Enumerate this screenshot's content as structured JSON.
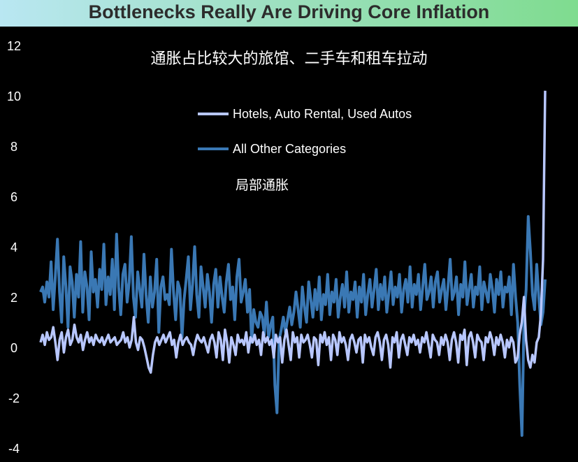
{
  "title": "Bottlenecks Really Are Driving Core Inflation",
  "subtitle": "通胀占比较大的旅馆、二手车和租车拉动",
  "annotation": "局部通胀",
  "colors": {
    "background": "#000000",
    "hotels_series": "#b8c7ff",
    "other_series": "#3a78b4",
    "title_text": "#2c2c2c",
    "axis_text": "#ffffff"
  },
  "chart_data": {
    "type": "line",
    "title": "Bottlenecks Really Are Driving Core Inflation",
    "xlabel": "",
    "ylabel": "",
    "ylim": [
      -4,
      12
    ],
    "yticks": [
      12,
      10,
      8,
      6,
      4,
      2,
      0,
      -2,
      -4
    ],
    "grid": false,
    "legend_position": "top-center",
    "series": [
      {
        "name": "Hotels, Auto Rental, Used Autos",
        "color": "#b8c7ff",
        "values": [
          0.2,
          0.5,
          0.1,
          0.6,
          0.3,
          0.4,
          0.8,
          0.2,
          -0.5,
          0.3,
          0.6,
          -0.2,
          0.4,
          0.7,
          0.1,
          0.3,
          0.9,
          0.4,
          0.2,
          0.5,
          -0.1,
          0.3,
          0.6,
          0.2,
          0.4,
          0.1,
          0.5,
          0.3,
          0.2,
          0.4,
          0.1,
          0.3,
          0.5,
          0.2,
          0.3,
          0.4,
          0.1,
          0.2,
          0.3,
          0.6,
          0.2,
          0.4,
          0.0,
          0.3,
          1.2,
          0.2,
          -0.1,
          0.4,
          0.3,
          0.0,
          -0.4,
          -0.8,
          -1.0,
          -0.3,
          0.2,
          0.4,
          0.1,
          0.3,
          0.5,
          0.2,
          0.4,
          0.6,
          0.1,
          0.3,
          -0.4,
          0.2,
          0.5,
          0.1,
          0.3,
          0.4,
          0.2,
          0.1,
          -0.3,
          0.2,
          0.5,
          0.3,
          0.2,
          0.4,
          0.1,
          -0.2,
          0.3,
          0.5,
          0.2,
          -0.4,
          0.6,
          0.3,
          -0.5,
          0.7,
          0.2,
          -0.6,
          0.4,
          0.1,
          -0.3,
          0.5,
          0.2,
          0.3,
          0.1,
          0.6,
          -0.2,
          0.4,
          0.2,
          0.5,
          0.1,
          0.3,
          -0.3,
          0.6,
          0.2,
          0.4,
          0.1,
          0.3,
          -0.4,
          0.5,
          0.2,
          0.4,
          -0.6,
          0.3,
          0.7,
          0.1,
          -0.5,
          0.6,
          0.2,
          0.4,
          -0.4,
          0.5,
          0.2,
          0.3,
          0.5,
          0.1,
          -0.4,
          0.4,
          0.3,
          -0.7,
          0.5,
          0.2,
          0.6,
          0.1,
          0.4,
          -0.5,
          0.5,
          0.3,
          -0.3,
          0.6,
          0.2,
          0.4,
          0.1,
          -0.5,
          0.3,
          0.5,
          0.2,
          -0.2,
          0.3,
          0.4,
          -0.6,
          0.5,
          0.2,
          0.4,
          0.0,
          -0.3,
          0.4,
          0.6,
          0.2,
          -0.5,
          0.3,
          0.5,
          0.1,
          -0.8,
          0.4,
          0.2,
          0.6,
          -0.4,
          0.3,
          0.5,
          0.1,
          -0.3,
          0.4,
          0.2,
          0.5,
          0.1,
          0.3,
          -0.2,
          0.4,
          0.2,
          0.6,
          0.1,
          -0.4,
          0.5,
          0.3,
          0.2,
          -0.3,
          0.4,
          0.1,
          0.5,
          0.2,
          -0.5,
          0.3,
          0.6,
          0.2,
          -0.6,
          0.5,
          0.3,
          0.7,
          -0.7,
          0.4,
          0.6,
          0.2,
          -0.4,
          0.5,
          0.3,
          0.2,
          -0.5,
          0.4,
          0.2,
          0.6,
          0.3,
          -0.3,
          0.4,
          0.1,
          0.5,
          0.2,
          -0.4,
          0.3,
          0.0,
          0.4,
          0.2,
          -0.6,
          -0.4,
          0.5,
          1.0,
          2.0,
          0.3,
          -0.5,
          -0.8,
          -0.3,
          -0.6,
          0.2,
          0.4,
          1.3,
          3.5,
          10.2
        ]
      },
      {
        "name": "All Other Categories",
        "color": "#3a78b4",
        "values": [
          2.2,
          2.4,
          1.8,
          2.6,
          2.0,
          3.4,
          1.5,
          2.8,
          4.3,
          2.2,
          1.0,
          3.6,
          2.4,
          0.8,
          3.2,
          2.6,
          1.2,
          2.9,
          2.0,
          4.2,
          1.4,
          3.0,
          2.4,
          1.1,
          3.8,
          2.2,
          2.7,
          1.6,
          3.1,
          2.3,
          4.1,
          1.7,
          2.8,
          2.1,
          3.5,
          1.5,
          4.5,
          2.4,
          1.3,
          2.9,
          3.3,
          1.8,
          2.6,
          4.4,
          2.0,
          1.2,
          3.0,
          2.3,
          1.6,
          3.7,
          2.1,
          1.0,
          2.8,
          1.6,
          2.2,
          3.5,
          0.6,
          2.4,
          2.8,
          1.9,
          2.1,
          1.7,
          3.9,
          2.2,
          1.1,
          2.6,
          2.3,
          0.4,
          1.9,
          2.7,
          3.6,
          1.5,
          2.5,
          4.0,
          2.1,
          1.2,
          3.2,
          2.4,
          1.6,
          2.9,
          2.2,
          1.0,
          2.5,
          3.1,
          1.6,
          2.8,
          2.0,
          1.4,
          2.6,
          3.3,
          1.9,
          2.4,
          1.1,
          2.8,
          3.5,
          1.8,
          2.2,
          2.7,
          1.4,
          2.3,
          0.2,
          1.5,
          1.0,
          0.8,
          1.4,
          1.2,
          0.5,
          1.8,
          0.4,
          0.9,
          1.2,
          -1.5,
          -2.6,
          0.3,
          0.7,
          1.2,
          0.6,
          1.1,
          1.6,
          0.9,
          1.4,
          2.2,
          1.5,
          0.8,
          2.4,
          1.6,
          1.0,
          2.6,
          1.9,
          1.2,
          2.3,
          1.5,
          2.8,
          1.1,
          2.1,
          1.7,
          2.9,
          1.3,
          2.2,
          1.8,
          2.7,
          1.2,
          2.0,
          2.5,
          1.6,
          3.0,
          1.4,
          2.2,
          1.9,
          2.6,
          1.2,
          2.4,
          1.8,
          2.9,
          1.3,
          2.1,
          2.7,
          1.6,
          2.3,
          3.1,
          1.5,
          2.5,
          1.9,
          2.8,
          1.4,
          2.2,
          3.0,
          1.7,
          2.4,
          2.0,
          2.9,
          1.4,
          2.3,
          2.7,
          1.8,
          3.2,
          1.6,
          2.5,
          2.1,
          2.9,
          1.5,
          2.4,
          3.3,
          1.9,
          2.2,
          2.8,
          1.6,
          2.6,
          3.0,
          1.8,
          2.3,
          2.7,
          1.5,
          2.4,
          3.5,
          1.9,
          2.2,
          2.8,
          1.3,
          2.5,
          2.0,
          3.4,
          1.7,
          2.3,
          2.9,
          1.6,
          2.4,
          2.1,
          3.2,
          1.5,
          2.6,
          2.2,
          1.8,
          2.9,
          2.3,
          1.4,
          2.7,
          2.1,
          3.0,
          1.6,
          2.4,
          2.2,
          2.8,
          1.3,
          3.3,
          2.0,
          1.0,
          -1.5,
          -3.5,
          1.2,
          2.3,
          5.2,
          3.8,
          2.1,
          1.5,
          3.3,
          2.0,
          0.9,
          1.4,
          2.7
        ]
      }
    ]
  }
}
